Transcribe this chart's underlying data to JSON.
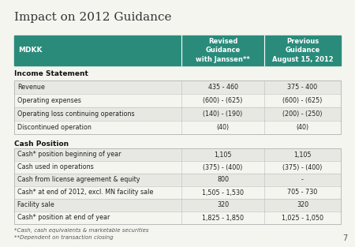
{
  "title": "Impact on 2012 Guidance",
  "header_col1": "MDKK",
  "header_col2": "Revised\nGuidance\nwith Janssen**",
  "header_col3": "Previous\nGuidance\nAugust 15, 2012",
  "header_bg": "#2a8b7b",
  "header_text_color": "#ffffff",
  "section1_title": "Income Statement",
  "income_rows": [
    [
      "Revenue",
      "435 - 460",
      "375 - 400"
    ],
    [
      "Operating expenses",
      "(600) - (625)",
      "(600) - (625)"
    ],
    [
      "Operating loss continuing operations",
      "(140) - (190)",
      "(200) - (250)"
    ],
    [
      "Discontinued operation",
      "(40)",
      "(40)"
    ]
  ],
  "section2_title": "Cash Position",
  "cash_rows": [
    [
      "Cash* position beginning of year",
      "1,105",
      "1,105"
    ],
    [
      "Cash used in operations",
      "(375) - (400)",
      "(375) - (400)"
    ],
    [
      "Cash from license agreement & equity",
      "800",
      "-"
    ],
    [
      "Cash* at end of 2012, excl. MN facility sale",
      "1,505 - 1,530",
      "705 - 730"
    ],
    [
      "Facility sale",
      "320",
      "320"
    ],
    [
      "Cash* position at end of year",
      "1,825 - 1,850",
      "1,025 - 1,050"
    ]
  ],
  "footnote1": "*Cash, cash equivalents & marketable securities",
  "footnote2": "**Dependent on transaction closing",
  "page_number": "7",
  "bg_color": "#f5f5f0",
  "row_even_color": "#e8e8e3",
  "row_odd_color": "#f5f5f0",
  "border_color": "#bbbbbb",
  "section_title_color": "#111111"
}
